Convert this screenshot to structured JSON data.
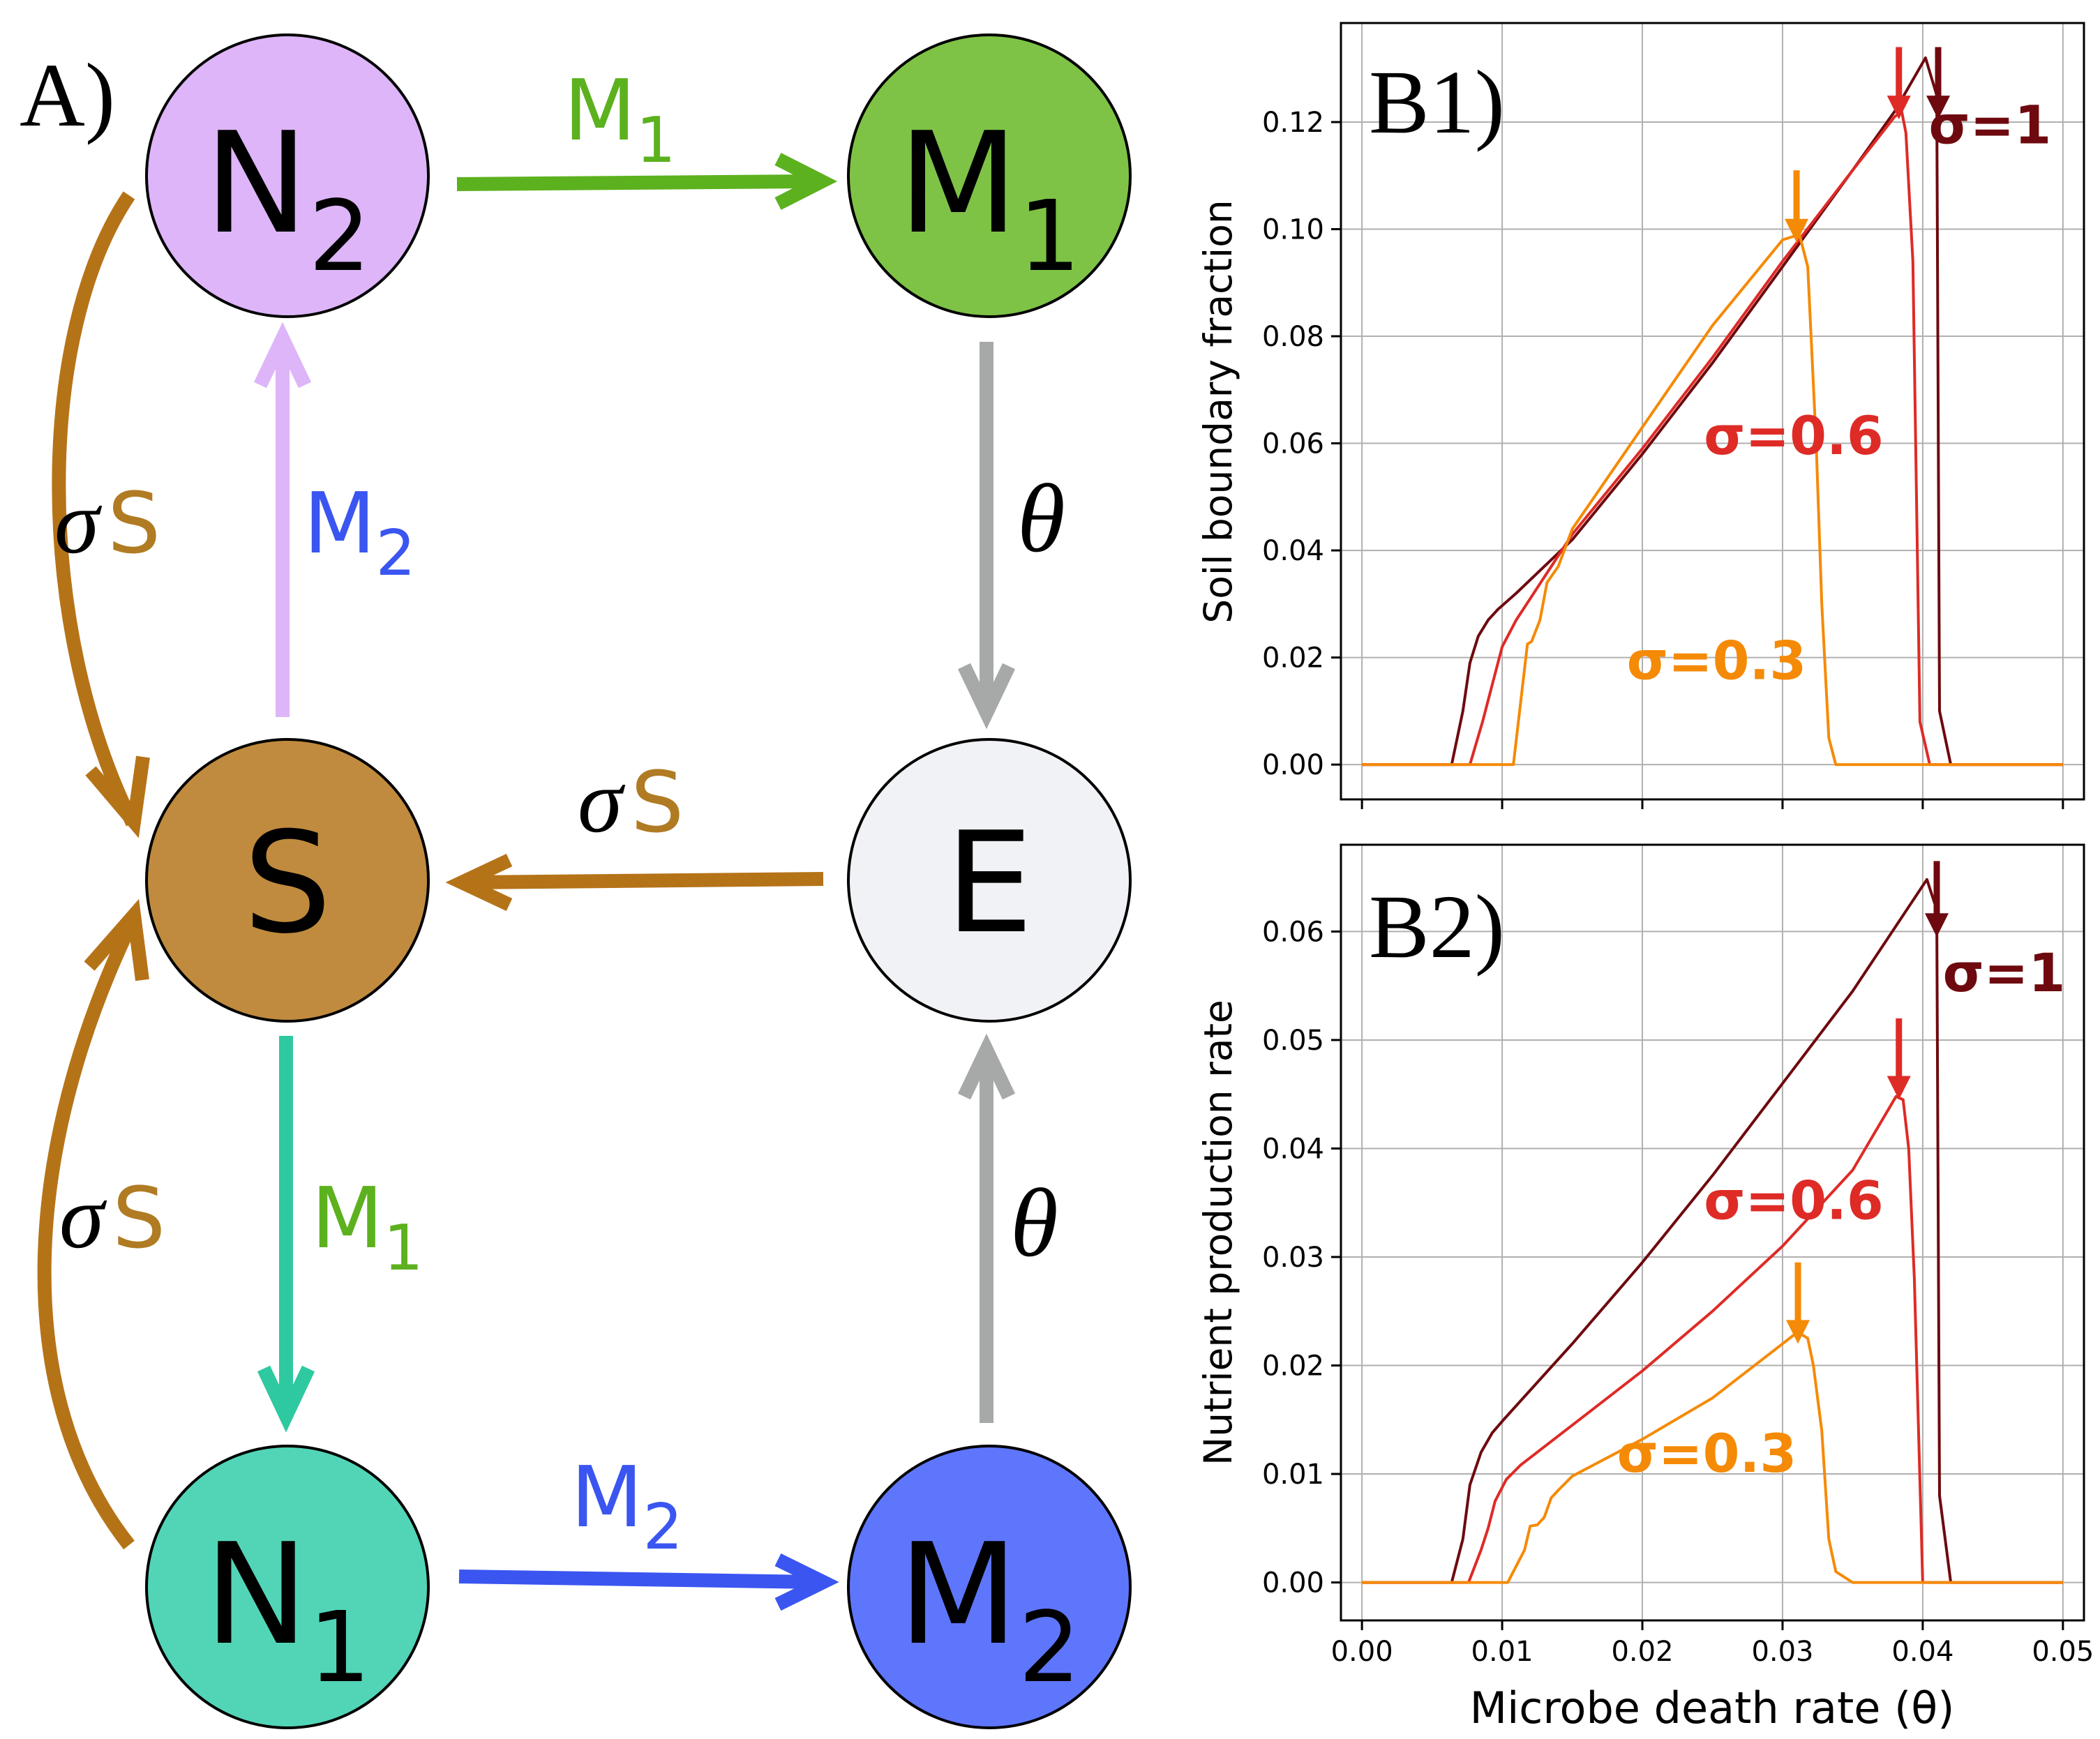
{
  "diagram": {
    "panel_label": "A)",
    "nodes": [
      {
        "id": "N2",
        "letter": "N",
        "sub": "2",
        "fill": "#ddb5f8"
      },
      {
        "id": "M1",
        "letter": "M",
        "sub": "1",
        "fill": "#7ec346"
      },
      {
        "id": "S",
        "letter": "S",
        "sub": "",
        "fill": "#c08b3e"
      },
      {
        "id": "E",
        "letter": "E",
        "sub": "",
        "fill": "#f1f2f5"
      },
      {
        "id": "N1",
        "letter": "N",
        "sub": "1",
        "fill": "#52d5b7"
      },
      {
        "id": "M2",
        "letter": "M",
        "sub": "2",
        "fill": "#5e76fc"
      }
    ],
    "edge_labels": {
      "n2_to_m1": {
        "letter": "M",
        "sub": "1",
        "color": "#5cb11e"
      },
      "s_to_n2": {
        "letter": "M",
        "sub": "2",
        "color": "#3a55f0"
      },
      "m1_to_e": {
        "symbol": "θ"
      },
      "e_to_s": {
        "symbol": "σ",
        "letter": "S",
        "color": "#b07b22"
      },
      "n2_to_s": {
        "symbol": "σ",
        "letter": "S",
        "color": "#b07b22"
      },
      "n1_to_s": {
        "symbol": "σ",
        "letter": "S",
        "color": "#b07b22"
      },
      "s_to_n1": {
        "letter": "M",
        "sub": "1",
        "color": "#5cb11e"
      },
      "m2_to_e": {
        "symbol": "θ"
      },
      "n1_to_m2": {
        "letter": "M",
        "sub": "2",
        "color": "#3a55f0"
      }
    },
    "arrow_colors": {
      "n2_to_m1": "#5cb11e",
      "s_to_n2": "#ddb5f8",
      "gray": "#a7a9a9",
      "brown": "#b57318",
      "s_to_n1": "#2ec9a0",
      "n1_to_m2": "#3a55f0"
    }
  },
  "chart_data": [
    {
      "panel_label": "B1)",
      "type": "line",
      "ylabel": "Soil boundary fraction",
      "xlim": [
        -0.0015,
        0.0515
      ],
      "ylim": [
        -0.0065,
        0.1385
      ],
      "yticks": [
        0.0,
        0.02,
        0.04,
        0.06,
        0.08,
        0.1,
        0.12
      ],
      "ytick_labels": [
        "0.00",
        "0.02",
        "0.04",
        "0.06",
        "0.08",
        "0.10",
        "0.12"
      ],
      "xticks": [
        0.0,
        0.01,
        0.02,
        0.03,
        0.04,
        0.05
      ],
      "grid": true,
      "series": [
        {
          "name": "σ=1",
          "color": "#6e0a0f",
          "label_at": [
            0.0448,
            0.116
          ],
          "arrow_x": 0.0411,
          "arrow_top": 0.134,
          "arrow_tip": 0.1205,
          "x": [
            0.0,
            0.0064,
            0.0072,
            0.0077,
            0.0083,
            0.009,
            0.0097,
            0.011,
            0.015,
            0.02,
            0.025,
            0.03,
            0.035,
            0.038,
            0.0402,
            0.041,
            0.0412,
            0.042,
            0.05
          ],
          "y": [
            0.0,
            0.0,
            0.01,
            0.019,
            0.024,
            0.027,
            0.029,
            0.032,
            0.042,
            0.058,
            0.075,
            0.093,
            0.111,
            0.122,
            0.132,
            0.125,
            0.01,
            0.0,
            0.0
          ]
        },
        {
          "name": "σ=0.6",
          "color": "#de2b26",
          "label_at": [
            0.0308,
            0.058
          ],
          "arrow_x": 0.0383,
          "arrow_top": 0.134,
          "arrow_tip": 0.1205,
          "x": [
            0.0,
            0.0077,
            0.0086,
            0.0093,
            0.01,
            0.011,
            0.012,
            0.015,
            0.02,
            0.025,
            0.03,
            0.035,
            0.038,
            0.0385,
            0.0388,
            0.0393,
            0.0398,
            0.0405,
            0.05
          ],
          "y": [
            0.0,
            0.0,
            0.008,
            0.015,
            0.022,
            0.027,
            0.031,
            0.043,
            0.059,
            0.076,
            0.094,
            0.111,
            0.121,
            0.122,
            0.118,
            0.094,
            0.008,
            0.0,
            0.0
          ]
        },
        {
          "name": "σ=0.3",
          "color": "#f58a07",
          "label_at": [
            0.0253,
            0.016
          ],
          "arrow_x": 0.031,
          "arrow_top": 0.111,
          "arrow_tip": 0.0975,
          "x": [
            0.0,
            0.0108,
            0.0118,
            0.0121,
            0.0127,
            0.0132,
            0.014,
            0.015,
            0.02,
            0.025,
            0.03,
            0.0312,
            0.0318,
            0.0324,
            0.0328,
            0.0333,
            0.0338,
            0.035,
            0.05
          ],
          "y": [
            0.0,
            0.0,
            0.0225,
            0.023,
            0.027,
            0.034,
            0.037,
            0.044,
            0.063,
            0.082,
            0.098,
            0.099,
            0.093,
            0.06,
            0.03,
            0.005,
            0.0,
            0.0,
            0.0
          ]
        }
      ]
    },
    {
      "panel_label": "B2)",
      "type": "line",
      "ylabel": "Nutrient production rate",
      "xlabel": "Microbe death rate (θ)",
      "xlim": [
        -0.0015,
        0.0515
      ],
      "ylim": [
        -0.0035,
        0.068
      ],
      "yticks": [
        0.0,
        0.01,
        0.02,
        0.03,
        0.04,
        0.05,
        0.06
      ],
      "ytick_labels": [
        "0.00",
        "0.01",
        "0.02",
        "0.03",
        "0.04",
        "0.05",
        "0.06"
      ],
      "xticks": [
        0.0,
        0.01,
        0.02,
        0.03,
        0.04,
        0.05
      ],
      "xtick_labels": [
        "0.00",
        "0.01",
        "0.02",
        "0.03",
        "0.04",
        "0.05"
      ],
      "grid": true,
      "series": [
        {
          "name": "σ=1",
          "color": "#6e0a0f",
          "label_at": [
            0.0458,
            0.0545
          ],
          "arrow_x": 0.041,
          "arrow_top": 0.0665,
          "arrow_tip": 0.0595,
          "x": [
            0.0,
            0.0064,
            0.0072,
            0.0077,
            0.0085,
            0.0093,
            0.0101,
            0.015,
            0.02,
            0.025,
            0.03,
            0.035,
            0.0403,
            0.041,
            0.0412,
            0.042,
            0.05
          ],
          "y": [
            0.0,
            0.0,
            0.004,
            0.009,
            0.012,
            0.0138,
            0.015,
            0.022,
            0.0295,
            0.0375,
            0.046,
            0.0545,
            0.0648,
            0.062,
            0.008,
            0.0,
            0.0
          ]
        },
        {
          "name": "σ=0.6",
          "color": "#de2b26",
          "label_at": [
            0.0308,
            0.0335
          ],
          "arrow_x": 0.0383,
          "arrow_top": 0.052,
          "arrow_tip": 0.0445,
          "x": [
            0.0,
            0.0076,
            0.0085,
            0.009,
            0.0095,
            0.0103,
            0.0113,
            0.015,
            0.02,
            0.025,
            0.03,
            0.035,
            0.0381,
            0.0386,
            0.039,
            0.0394,
            0.04,
            0.05
          ],
          "y": [
            0.0,
            0.0,
            0.003,
            0.005,
            0.0075,
            0.0095,
            0.0108,
            0.0145,
            0.0195,
            0.025,
            0.031,
            0.038,
            0.0448,
            0.0445,
            0.04,
            0.028,
            0.0,
            0.0
          ]
        },
        {
          "name": "σ=0.3",
          "color": "#f58a07",
          "label_at": [
            0.0246,
            0.0102
          ],
          "arrow_x": 0.0311,
          "arrow_top": 0.0295,
          "arrow_tip": 0.022,
          "x": [
            0.0,
            0.0104,
            0.011,
            0.0116,
            0.012,
            0.0125,
            0.013,
            0.0135,
            0.014,
            0.015,
            0.02,
            0.025,
            0.0308,
            0.0313,
            0.0318,
            0.0322,
            0.0328,
            0.0333,
            0.0338,
            0.035,
            0.05
          ],
          "y": [
            0.0,
            0.0,
            0.0015,
            0.003,
            0.0052,
            0.0053,
            0.006,
            0.0078,
            0.0085,
            0.0098,
            0.0132,
            0.017,
            0.0228,
            0.0229,
            0.0225,
            0.02,
            0.014,
            0.004,
            0.001,
            0.0,
            0.0
          ]
        }
      ]
    }
  ]
}
